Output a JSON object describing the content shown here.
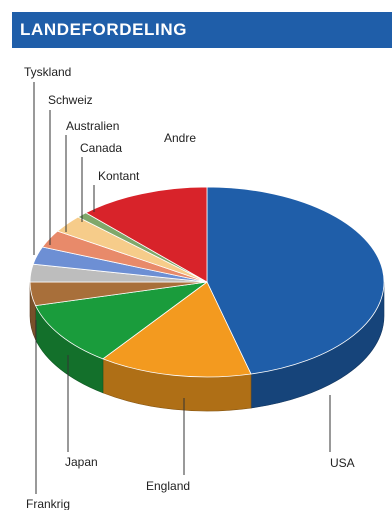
{
  "header": {
    "title": "LANDEFORDELING"
  },
  "colors": {
    "header_bg": "#1f5ea9"
  },
  "chart_data": {
    "type": "pie",
    "title": "LANDEFORDELING",
    "style": "3d-exploded",
    "slices": [
      {
        "label": "USA",
        "value": 46,
        "color": "#1f5ea9"
      },
      {
        "label": "England",
        "value": 14,
        "color": "#f39a1f"
      },
      {
        "label": "Japan",
        "value": 11,
        "color": "#1a9c3c"
      },
      {
        "label": "Frankrig",
        "value": 4,
        "color": "#a86f3a"
      },
      {
        "label": "Tyskland",
        "value": 3,
        "color": "#bdbdbd"
      },
      {
        "label": "Schweiz",
        "value": 3,
        "color": "#6d8fd4"
      },
      {
        "label": "Australien",
        "value": 3,
        "color": "#e88a6a"
      },
      {
        "label": "Canada",
        "value": 3,
        "color": "#f6cc8a"
      },
      {
        "label": "Kontant",
        "value": 1,
        "color": "#7fa86a"
      },
      {
        "label": "Andre",
        "value": 12,
        "color": "#d8232a"
      }
    ]
  }
}
